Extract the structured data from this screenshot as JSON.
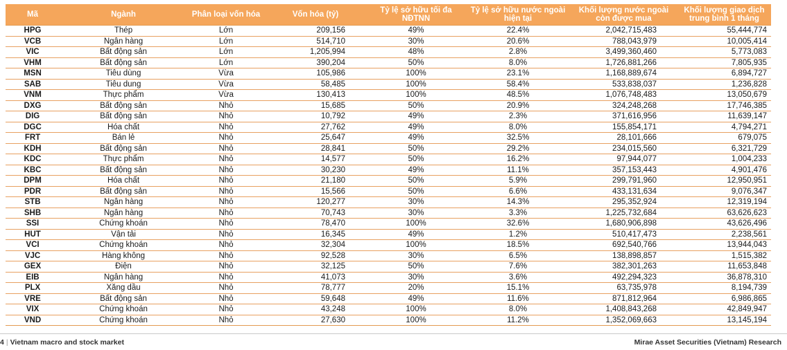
{
  "table": {
    "headers": [
      "Mã",
      "Ngành",
      "Phân loại vốn hóa",
      "Vốn hóa (tỷ)",
      "Tỷ lệ sở hữu tối đa NĐTNN",
      "Tỷ lệ sở hữu nước ngoài hiện tại",
      "Khối lượng nước ngoài còn được mua",
      "Khối lượng giao dịch trung bình 1 tháng"
    ],
    "rows": [
      [
        "HPG",
        "Thép",
        "Lớn",
        "209,156",
        "49%",
        "22.4%",
        "2,042,715,483",
        "55,444,774"
      ],
      [
        "VCB",
        "Ngân hàng",
        "Lớn",
        "514,710",
        "30%",
        "20.6%",
        "788,043,979",
        "10,005,414"
      ],
      [
        "VIC",
        "Bất động sản",
        "Lớn",
        "1,205,994",
        "48%",
        "2.8%",
        "3,499,360,460",
        "5,773,083"
      ],
      [
        "VHM",
        "Bất động sản",
        "Lớn",
        "390,204",
        "50%",
        "8.0%",
        "1,726,881,266",
        "7,805,935"
      ],
      [
        "MSN",
        "Tiêu dùng",
        "Vừa",
        "105,986",
        "100%",
        "23.1%",
        "1,168,889,674",
        "6,894,727"
      ],
      [
        "SAB",
        "Tiêu dung",
        "Vừa",
        "58,485",
        "100%",
        "58.4%",
        "533,838,037",
        "1,236,828"
      ],
      [
        "VNM",
        "Thực phẩm",
        "Vừa",
        "130,413",
        "100%",
        "48.5%",
        "1,076,748,483",
        "13,050,679"
      ],
      [
        "DXG",
        "Bất động sản",
        "Nhỏ",
        "15,685",
        "50%",
        "20.9%",
        "324,248,268",
        "17,746,385"
      ],
      [
        "DIG",
        "Bất động sản",
        "Nhỏ",
        "10,792",
        "49%",
        "2.3%",
        "371,616,956",
        "11,639,147"
      ],
      [
        "DGC",
        "Hóa chất",
        "Nhỏ",
        "27,762",
        "49%",
        "8.0%",
        "155,854,171",
        "4,794,271"
      ],
      [
        "FRT",
        "Bán lẻ",
        "Nhỏ",
        "25,647",
        "49%",
        "32.5%",
        "28,101,666",
        "679,075"
      ],
      [
        "KDH",
        "Bất động sản",
        "Nhỏ",
        "28,841",
        "50%",
        "29.2%",
        "234,015,560",
        "6,321,729"
      ],
      [
        "KDC",
        "Thực phẩm",
        "Nhỏ",
        "14,577",
        "50%",
        "16.2%",
        "97,944,077",
        "1,004,233"
      ],
      [
        "KBC",
        "Bất động sản",
        "Nhỏ",
        "30,230",
        "49%",
        "11.1%",
        "357,153,443",
        "4,901,476"
      ],
      [
        "DPM",
        "Hóa chất",
        "Nhỏ",
        "21,180",
        "50%",
        "5.9%",
        "299,791,960",
        "12,950,951"
      ],
      [
        "PDR",
        "Bất động sản",
        "Nhỏ",
        "15,566",
        "50%",
        "6.6%",
        "433,131,634",
        "9,076,347"
      ],
      [
        "STB",
        "Ngân hàng",
        "Nhỏ",
        "120,277",
        "30%",
        "14.3%",
        "295,352,924",
        "12,319,194"
      ],
      [
        "SHB",
        "Ngân hàng",
        "Nhỏ",
        "70,743",
        "30%",
        "3.3%",
        "1,225,732,684",
        "63,626,623"
      ],
      [
        "SSI",
        "Chứng khoán",
        "Nhỏ",
        "78,470",
        "100%",
        "32.6%",
        "1,680,906,898",
        "43,626,496"
      ],
      [
        "HUT",
        "Vận tải",
        "Nhỏ",
        "16,345",
        "49%",
        "1.2%",
        "510,417,473",
        "2,238,561"
      ],
      [
        "VCI",
        "Chứng khoán",
        "Nhỏ",
        "32,304",
        "100%",
        "18.5%",
        "692,540,766",
        "13,944,043"
      ],
      [
        "VJC",
        "Hàng không",
        "Nhỏ",
        "92,528",
        "30%",
        "6.5%",
        "138,898,857",
        "1,515,382"
      ],
      [
        "GEX",
        "Điện",
        "Nhỏ",
        "32,125",
        "50%",
        "7.6%",
        "382,301,263",
        "11,653,848"
      ],
      [
        "EIB",
        "Ngân hàng",
        "Nhỏ",
        "41,073",
        "30%",
        "3.6%",
        "492,294,323",
        "36,878,310"
      ],
      [
        "PLX",
        "Xăng dầu",
        "Nhỏ",
        "78,777",
        "20%",
        "15.1%",
        "63,735,978",
        "8,194,739"
      ],
      [
        "VRE",
        "Bất động sản",
        "Nhỏ",
        "59,648",
        "49%",
        "11.6%",
        "871,812,964",
        "6,986,865"
      ],
      [
        "VIX",
        "Chứng khoán",
        "Nhỏ",
        "43,248",
        "100%",
        "8.0%",
        "1,408,843,268",
        "42,849,947"
      ],
      [
        "VND",
        "Chứng khoán",
        "Nhỏ",
        "27,630",
        "100%",
        "11.2%",
        "1,352,069,663",
        "13,145,194"
      ]
    ]
  },
  "footer": {
    "page_number": "4",
    "separator": "|",
    "report_title": "Vietnam macro and stock market",
    "publisher": "Mirae Asset Securities (Vietnam) Research"
  }
}
